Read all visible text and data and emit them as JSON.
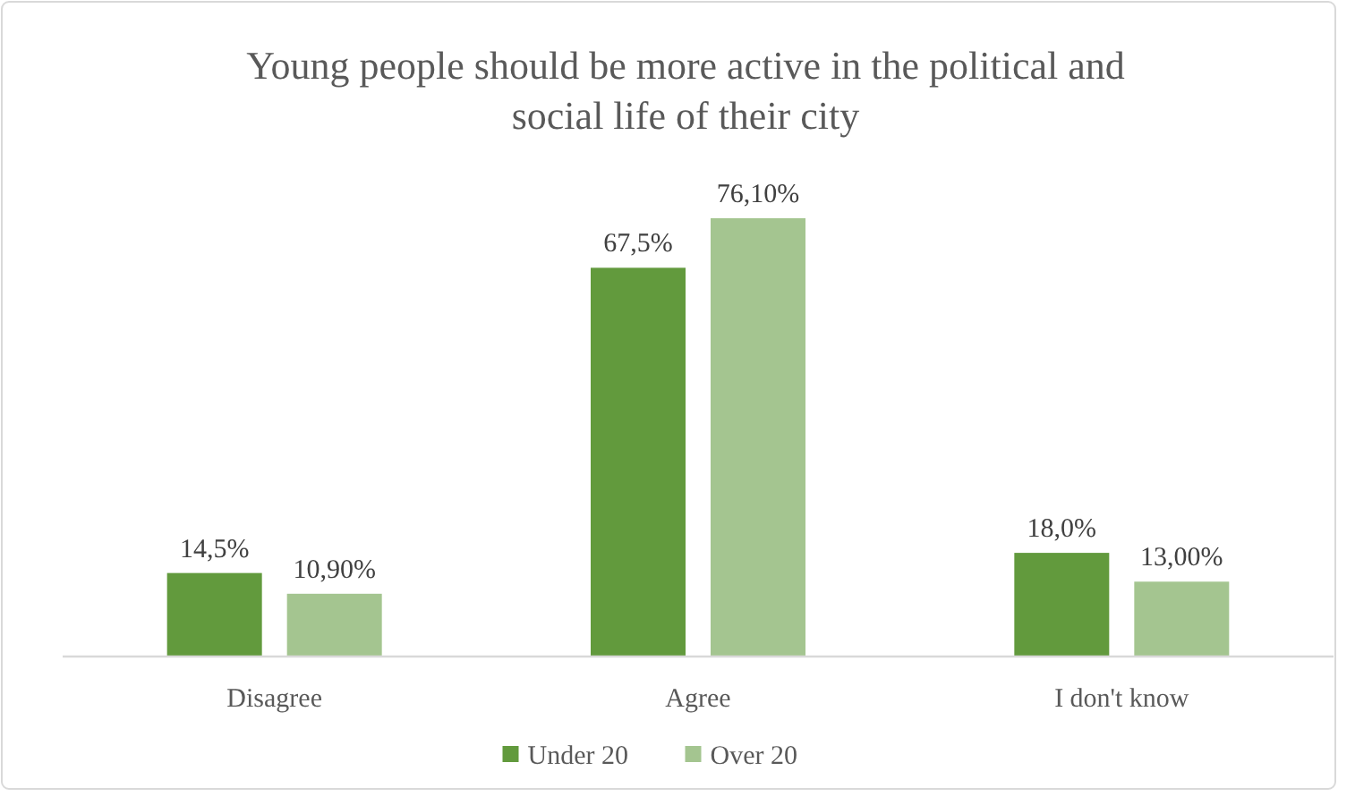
{
  "chart_data": {
    "type": "bar",
    "title": "Young people should be more active in the political and social life of their city",
    "categories": [
      "Disagree",
      "Agree",
      "I don't know"
    ],
    "series": [
      {
        "name": "Under 20",
        "color": "#629a3d",
        "values": [
          14.5,
          67.5,
          18.0
        ],
        "value_labels": [
          "14,5%",
          "67,5%",
          "18,0%"
        ]
      },
      {
        "name": "Over 20",
        "color": "#a4c590",
        "values": [
          10.9,
          76.1,
          13.0
        ],
        "value_labels": [
          "10,90%",
          "76,10%",
          "13,00%"
        ]
      }
    ],
    "legend": "bottom"
  }
}
